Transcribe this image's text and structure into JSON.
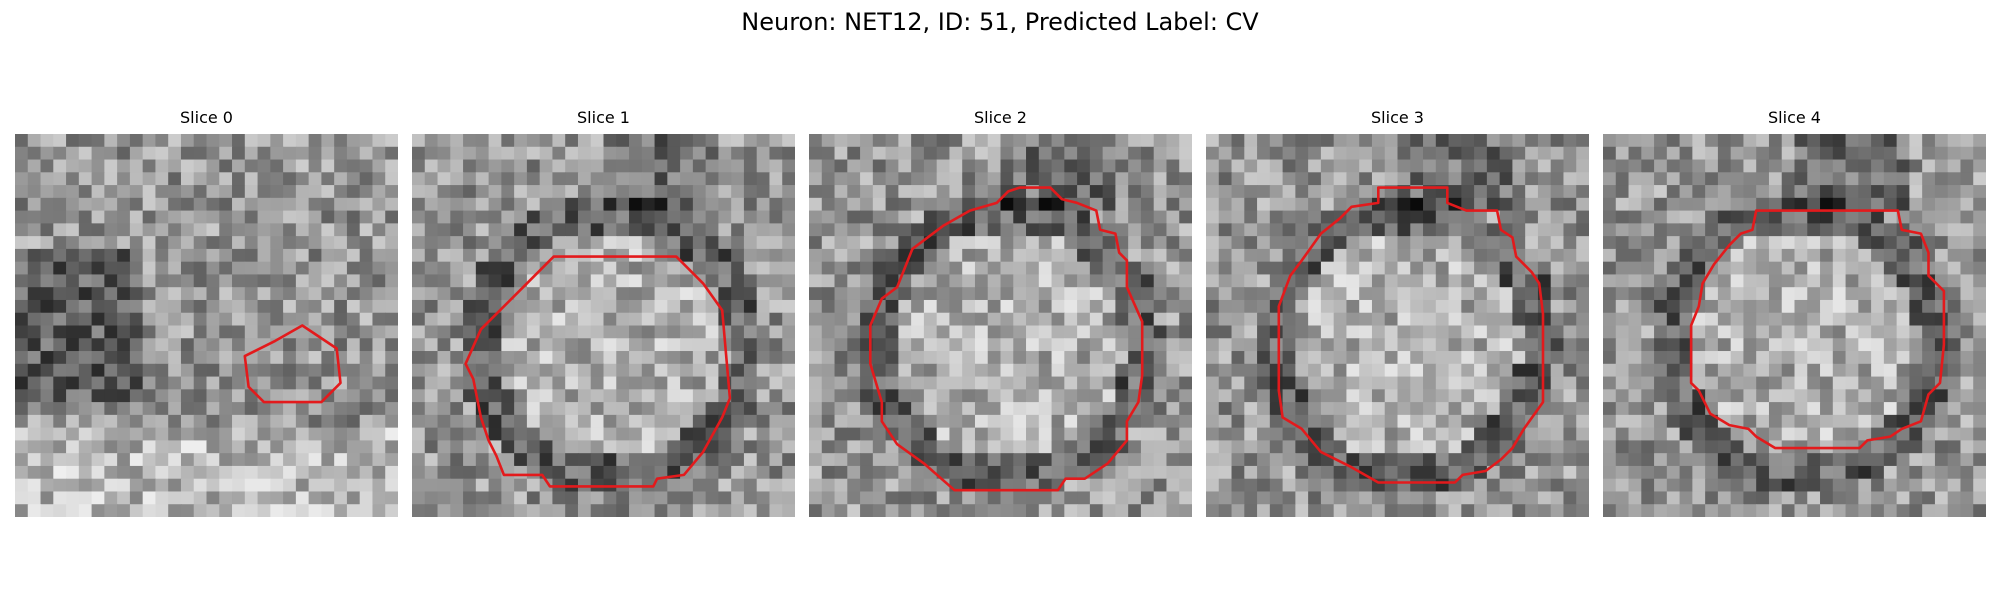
{
  "title": "Neuron: NET12, ID: 51, Predicted Label: CV",
  "contour_color": "#e31a1c",
  "panels": [
    {
      "title": "Slice 0",
      "contour": [
        [
          7.5,
          5.0
        ],
        [
          8.4,
          5.6
        ],
        [
          8.5,
          6.5
        ],
        [
          8.0,
          7.0
        ],
        [
          6.5,
          7.0
        ],
        [
          6.1,
          6.6
        ],
        [
          6.0,
          5.8
        ],
        [
          6.8,
          5.4
        ]
      ]
    },
    {
      "title": "Slice 1",
      "contour": [
        [
          3.7,
          3.2
        ],
        [
          6.9,
          3.2
        ],
        [
          7.6,
          3.9
        ],
        [
          8.1,
          4.6
        ],
        [
          8.3,
          6.9
        ],
        [
          8.1,
          7.4
        ],
        [
          7.6,
          8.3
        ],
        [
          7.1,
          8.9
        ],
        [
          6.4,
          9.0
        ],
        [
          6.3,
          9.2
        ],
        [
          3.6,
          9.2
        ],
        [
          3.4,
          8.9
        ],
        [
          2.4,
          8.9
        ],
        [
          2.2,
          8.4
        ],
        [
          2.0,
          8.0
        ],
        [
          1.8,
          7.4
        ],
        [
          1.6,
          6.4
        ],
        [
          1.4,
          6.0
        ],
        [
          1.8,
          5.1
        ],
        [
          2.3,
          4.6
        ],
        [
          3.0,
          3.9
        ]
      ]
    },
    {
      "title": "Slice 2",
      "contour": [
        [
          5.5,
          1.4
        ],
        [
          6.3,
          1.4
        ],
        [
          6.6,
          1.7
        ],
        [
          7.0,
          1.8
        ],
        [
          7.5,
          2.0
        ],
        [
          7.6,
          2.5
        ],
        [
          8.0,
          2.6
        ],
        [
          8.1,
          3.1
        ],
        [
          8.3,
          3.3
        ],
        [
          8.3,
          4.0
        ],
        [
          8.7,
          4.9
        ],
        [
          8.7,
          6.3
        ],
        [
          8.6,
          7.0
        ],
        [
          8.3,
          7.5
        ],
        [
          8.3,
          8.0
        ],
        [
          7.8,
          8.6
        ],
        [
          7.2,
          9.0
        ],
        [
          6.7,
          9.0
        ],
        [
          6.5,
          9.3
        ],
        [
          3.8,
          9.3
        ],
        [
          3.0,
          8.6
        ],
        [
          2.3,
          8.1
        ],
        [
          1.9,
          7.5
        ],
        [
          1.9,
          7.0
        ],
        [
          1.6,
          6.0
        ],
        [
          1.6,
          5.0
        ],
        [
          1.9,
          4.3
        ],
        [
          2.3,
          4.0
        ],
        [
          2.5,
          3.5
        ],
        [
          2.7,
          3.0
        ],
        [
          3.1,
          2.7
        ],
        [
          3.5,
          2.4
        ],
        [
          4.2,
          2.0
        ],
        [
          4.9,
          1.8
        ],
        [
          5.2,
          1.5
        ]
      ]
    },
    {
      "title": "Slice 3",
      "contour": [
        [
          4.5,
          1.4
        ],
        [
          6.3,
          1.4
        ],
        [
          6.3,
          1.8
        ],
        [
          6.8,
          2.0
        ],
        [
          7.6,
          2.0
        ],
        [
          7.7,
          2.5
        ],
        [
          8.0,
          2.7
        ],
        [
          8.1,
          3.2
        ],
        [
          8.5,
          3.6
        ],
        [
          8.7,
          3.9
        ],
        [
          8.8,
          4.7
        ],
        [
          8.8,
          7.0
        ],
        [
          8.3,
          7.7
        ],
        [
          8.0,
          8.2
        ],
        [
          7.7,
          8.5
        ],
        [
          7.3,
          8.8
        ],
        [
          6.7,
          8.9
        ],
        [
          6.5,
          9.1
        ],
        [
          4.5,
          9.1
        ],
        [
          3.8,
          8.7
        ],
        [
          3.0,
          8.3
        ],
        [
          2.5,
          7.7
        ],
        [
          2.0,
          7.4
        ],
        [
          1.9,
          6.7
        ],
        [
          1.9,
          4.5
        ],
        [
          2.2,
          3.7
        ],
        [
          2.5,
          3.3
        ],
        [
          3.0,
          2.6
        ],
        [
          3.5,
          2.2
        ],
        [
          3.8,
          1.9
        ],
        [
          4.5,
          1.8
        ]
      ]
    },
    {
      "title": "Slice 4",
      "contour": [
        [
          4.0,
          2.0
        ],
        [
          7.7,
          2.0
        ],
        [
          7.8,
          2.5
        ],
        [
          8.3,
          2.6
        ],
        [
          8.5,
          3.1
        ],
        [
          8.5,
          3.7
        ],
        [
          8.9,
          4.1
        ],
        [
          8.9,
          5.5
        ],
        [
          8.8,
          6.5
        ],
        [
          8.5,
          6.8
        ],
        [
          8.3,
          7.5
        ],
        [
          7.8,
          7.7
        ],
        [
          7.5,
          7.9
        ],
        [
          6.9,
          8.0
        ],
        [
          6.7,
          8.2
        ],
        [
          4.5,
          8.2
        ],
        [
          4.0,
          7.9
        ],
        [
          3.8,
          7.7
        ],
        [
          3.3,
          7.6
        ],
        [
          2.8,
          7.3
        ],
        [
          2.5,
          6.7
        ],
        [
          2.3,
          6.5
        ],
        [
          2.3,
          5.0
        ],
        [
          2.5,
          4.5
        ],
        [
          2.6,
          3.9
        ],
        [
          2.9,
          3.4
        ],
        [
          3.3,
          2.9
        ],
        [
          3.6,
          2.6
        ],
        [
          3.9,
          2.5
        ]
      ]
    }
  ]
}
